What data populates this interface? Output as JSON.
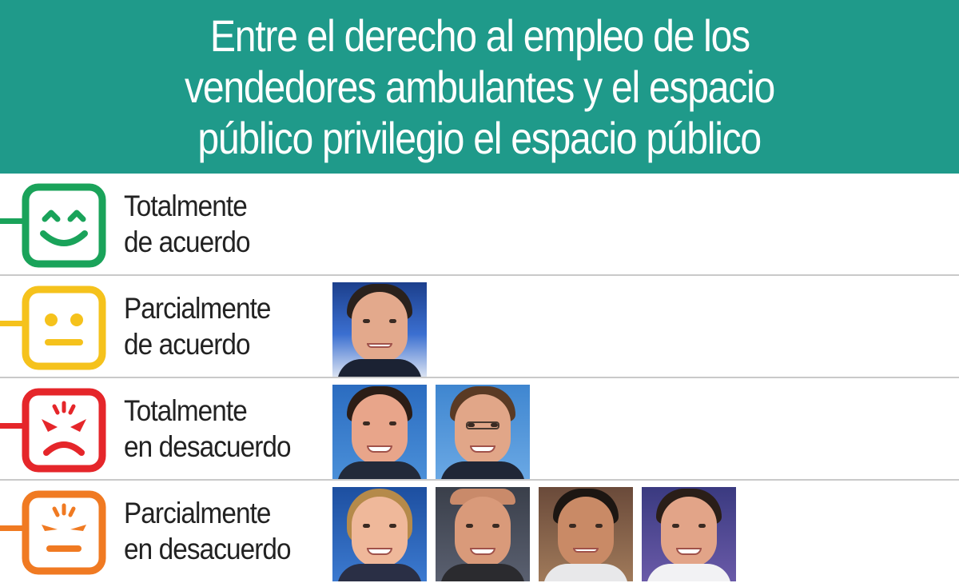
{
  "header": {
    "title_lines": [
      "Entre el derecho al empleo de los",
      "vendedores ambulantes y el espacio",
      "público privilegio el espacio público"
    ],
    "background_color": "#1f9a8a"
  },
  "rows": [
    {
      "label_line1": "Totalmente",
      "label_line2": "de acuerdo",
      "face_icon": "happy-face-icon",
      "color": "#1aa35a",
      "photo_count": 0
    },
    {
      "label_line1": "Parcialmente",
      "label_line2": "de acuerdo",
      "face_icon": "neutral-face-icon",
      "color": "#f5c21c",
      "photo_count": 1
    },
    {
      "label_line1": "Totalmente",
      "label_line2": "en desacuerdo",
      "face_icon": "angry-face-icon",
      "color": "#e5262a",
      "photo_count": 2
    },
    {
      "label_line1": "Parcialmente",
      "label_line2": "en desacuerdo",
      "face_icon": "annoyed-face-icon",
      "color": "#f07a22",
      "photo_count": 4
    }
  ]
}
